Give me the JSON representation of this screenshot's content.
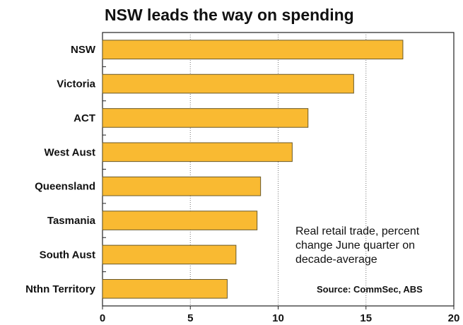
{
  "chart_data": {
    "type": "bar",
    "orientation": "horizontal",
    "title": "NSW leads the way on spending",
    "categories": [
      "NSW",
      "Victoria",
      "ACT",
      "West Aust",
      "Queensland",
      "Tasmania",
      "South Aust",
      "Nthn Territory"
    ],
    "values": [
      17.1,
      14.3,
      11.7,
      10.8,
      9.0,
      8.8,
      7.6,
      7.1
    ],
    "xlim": [
      0,
      20
    ],
    "xticks": [
      "0",
      "5",
      "10",
      "15",
      "20"
    ],
    "grid": "vertical-dotted",
    "annotation": "Real retail trade, percent change June quarter on decade-average",
    "source": "Source: CommSec, ABS",
    "bar_color": "#F9BA32",
    "bar_edge_color": "#6b5a2a"
  }
}
